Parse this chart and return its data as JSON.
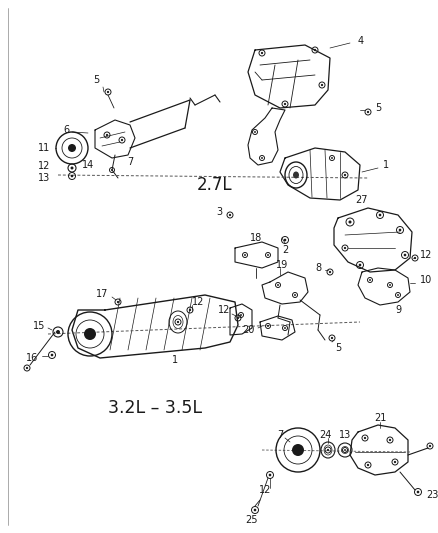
{
  "background_color": "#ffffff",
  "line_color": "#1a1a1a",
  "text_color": "#1a1a1a",
  "label_2_7L": "2.7L",
  "label_3_2L_3_5L": "3.2L – 3.5L",
  "fig_width": 4.38,
  "fig_height": 5.33,
  "dpi": 100,
  "num_fs": 7,
  "label_fs": 12
}
